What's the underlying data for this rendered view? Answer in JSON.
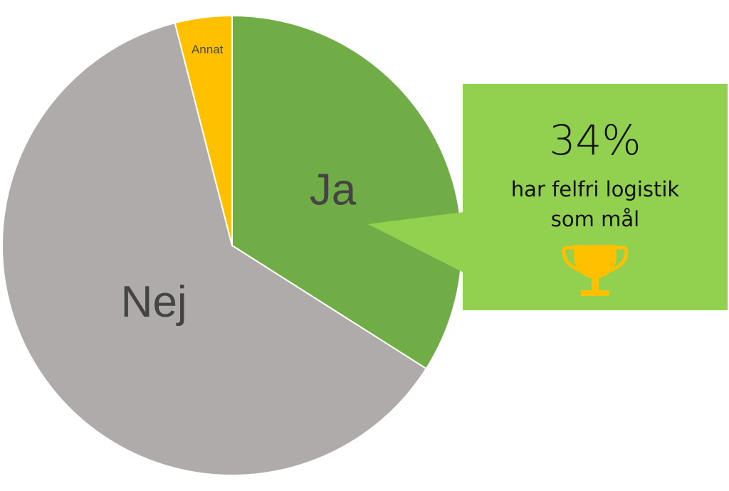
{
  "chart_data": {
    "type": "pie",
    "slices": [
      {
        "label": "Ja",
        "value": 34,
        "color": "#70AD47"
      },
      {
        "label": "Nej",
        "value": 62,
        "color": "#AEABAA"
      },
      {
        "label": "Annat",
        "value": 4,
        "color": "#FFC000"
      }
    ],
    "start_angle_deg": 0,
    "direction": "clockwise"
  },
  "callout": {
    "value": "34%",
    "line1": "har felfri logistik",
    "line2": "som mål",
    "icon": "trophy-icon",
    "background": "#92D050",
    "icon_color": "#FFC000"
  }
}
